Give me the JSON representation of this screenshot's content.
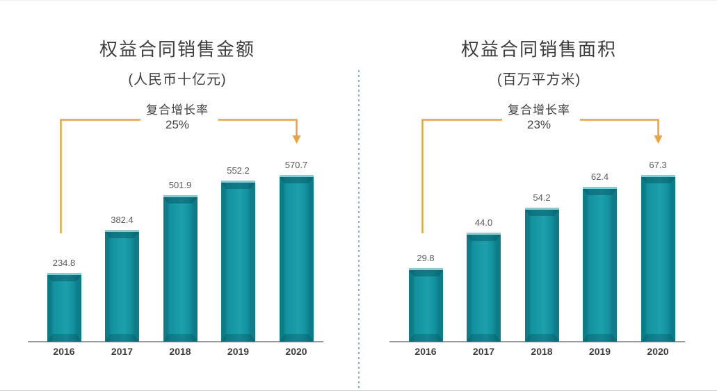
{
  "chart_data": [
    {
      "type": "bar",
      "title": "权益合同销售金额",
      "subtitle": "(人民币十亿元)",
      "categories": [
        "2016",
        "2017",
        "2018",
        "2019",
        "2020"
      ],
      "values": [
        234.8,
        382.4,
        501.9,
        552.2,
        570.7
      ],
      "value_labels": [
        "234.8",
        "382.4",
        "501.9",
        "552.2",
        "570.7"
      ],
      "annotation": {
        "label": "复合增长率",
        "value": "25%"
      },
      "xlabel": "",
      "ylabel": "",
      "layout": {
        "y_axis_shown": false,
        "gridlines": false,
        "data_labels_shown": true,
        "annotation_style": "orange-bracket-arrow-first-to-last-bar"
      }
    },
    {
      "type": "bar",
      "title": "权益合同销售面积",
      "subtitle": "(百万平方米)",
      "categories": [
        "2016",
        "2017",
        "2018",
        "2019",
        "2020"
      ],
      "values": [
        29.8,
        44.0,
        54.2,
        62.4,
        67.3
      ],
      "value_labels": [
        "29.8",
        "44.0",
        "54.2",
        "62.4",
        "67.3"
      ],
      "annotation": {
        "label": "复合增长率",
        "value": "23%"
      },
      "xlabel": "",
      "ylabel": "",
      "layout": {
        "y_axis_shown": false,
        "gridlines": false,
        "data_labels_shown": true,
        "annotation_style": "orange-bracket-arrow-first-to-last-bar"
      }
    }
  ],
  "colors": {
    "bar_teal": "#12919e",
    "bar_bevel_dark": "#0d7280",
    "bar_top_highlight": "#7fd0d6",
    "accent_orange": "#E9A43C",
    "divider_blue": "#8fb6c0",
    "axis_gray": "#9a9a9a",
    "title_gray": "#3d3d3d",
    "value_gray": "#595959"
  }
}
